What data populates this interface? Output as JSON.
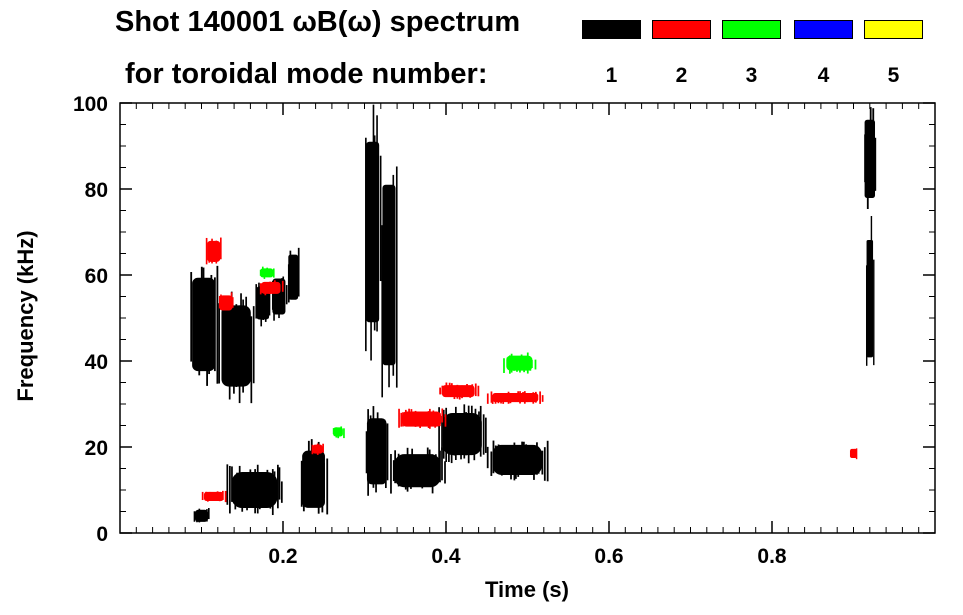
{
  "header": {
    "title_line1": "Shot 140001 ωB(ω) spectrum",
    "title_line2": "for toroidal mode number:"
  },
  "legend": [
    {
      "label": "1",
      "color": "#000000"
    },
    {
      "label": "2",
      "color": "#ff0000"
    },
    {
      "label": "3",
      "color": "#00ff00"
    },
    {
      "label": "4",
      "color": "#0000ff"
    },
    {
      "label": "5",
      "color": "#ffff00"
    }
  ],
  "chart_data": {
    "type": "heatmap",
    "title": "Shot 140001 ωB(ω) spectrum for toroidal mode number: 1 2 3 4 5",
    "xlabel": "Time (s)",
    "ylabel": "Frequency (kHz)",
    "xlim": [
      0.0,
      1.0
    ],
    "ylim": [
      0,
      100
    ],
    "xticks": [
      0.2,
      0.4,
      0.6,
      0.8
    ],
    "xtick_labels": [
      "0.2",
      "0.4",
      "0.6",
      "0.8"
    ],
    "yticks": [
      0,
      20,
      40,
      60,
      80,
      100
    ],
    "ytick_labels": [
      "0",
      "20",
      "40",
      "60",
      "80",
      "100"
    ],
    "series": [
      {
        "name": "1",
        "color": "#000000",
        "regions": [
          {
            "t": [
              0.085,
              0.12
            ],
            "f": [
              33,
              64
            ]
          },
          {
            "t": [
              0.12,
              0.165
            ],
            "f": [
              30,
              57
            ]
          },
          {
            "t": [
              0.165,
              0.185
            ],
            "f": [
              48,
              59
            ]
          },
          {
            "t": [
              0.185,
              0.205
            ],
            "f": [
              49,
              61
            ]
          },
          {
            "t": [
              0.205,
              0.22
            ],
            "f": [
              52,
              67
            ]
          },
          {
            "t": [
              0.09,
              0.11
            ],
            "f": [
              2,
              6
            ]
          },
          {
            "t": [
              0.13,
              0.2
            ],
            "f": [
              4,
              16
            ]
          },
          {
            "t": [
              0.22,
              0.255
            ],
            "f": [
              3,
              22
            ]
          },
          {
            "t": [
              0.3,
              0.33
            ],
            "f": [
              8,
              30
            ]
          },
          {
            "t": [
              0.33,
              0.4
            ],
            "f": [
              9,
              20
            ]
          },
          {
            "t": [
              0.39,
              0.45
            ],
            "f": [
              16,
              30
            ]
          },
          {
            "t": [
              0.45,
              0.525
            ],
            "f": [
              12,
              22
            ]
          },
          {
            "t": [
              0.3,
              0.32
            ],
            "f": [
              40,
              100
            ]
          },
          {
            "t": [
              0.32,
              0.34
            ],
            "f": [
              30,
              90
            ]
          },
          {
            "t": [
              0.912,
              0.928
            ],
            "f": [
              74,
              100
            ]
          },
          {
            "t": [
              0.915,
              0.925
            ],
            "f": [
              35,
              74
            ]
          }
        ]
      },
      {
        "name": "2",
        "color": "#ff0000",
        "regions": [
          {
            "t": [
              0.105,
              0.125
            ],
            "f": [
              62,
              69
            ]
          },
          {
            "t": [
              0.12,
              0.14
            ],
            "f": [
              51,
              56
            ]
          },
          {
            "t": [
              0.17,
              0.2
            ],
            "f": [
              55,
              59
            ]
          },
          {
            "t": [
              0.34,
              0.4
            ],
            "f": [
              24,
              29
            ]
          },
          {
            "t": [
              0.39,
              0.44
            ],
            "f": [
              31,
              35
            ]
          },
          {
            "t": [
              0.45,
              0.52
            ],
            "f": [
              30,
              33
            ]
          },
          {
            "t": [
              0.1,
              0.13
            ],
            "f": [
              7,
              10
            ]
          },
          {
            "t": [
              0.235,
              0.25
            ],
            "f": [
              18,
              21
            ]
          },
          {
            "t": [
              0.895,
              0.905
            ],
            "f": [
              17,
              20
            ]
          }
        ]
      },
      {
        "name": "3",
        "color": "#00ff00",
        "regions": [
          {
            "t": [
              0.47,
              0.51
            ],
            "f": [
              37,
              42
            ]
          },
          {
            "t": [
              0.17,
              0.19
            ],
            "f": [
              59,
              62
            ]
          },
          {
            "t": [
              0.26,
              0.275
            ],
            "f": [
              22,
              25
            ]
          }
        ]
      },
      {
        "name": "4",
        "color": "#0000ff",
        "regions": []
      },
      {
        "name": "5",
        "color": "#ffff00",
        "regions": []
      }
    ]
  }
}
